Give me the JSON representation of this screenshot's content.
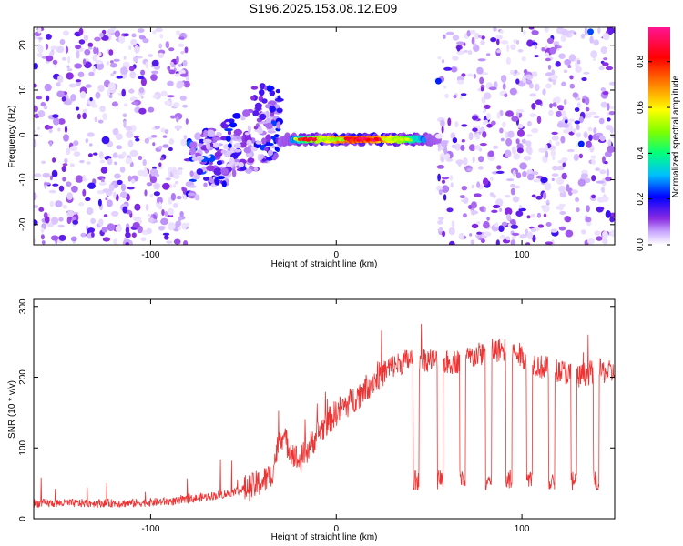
{
  "title": "S196.2025.153.08.12.E09",
  "chart_data": [
    {
      "type": "heatmap",
      "xlabel": "Height of straight line (km)",
      "ylabel": "Frequency (Hz)",
      "xlim": [
        -163,
        150
      ],
      "ylim": [
        -24.5,
        24
      ],
      "xticks": [
        -100,
        0,
        100
      ],
      "yticks": [
        -20,
        -10,
        0,
        10,
        20
      ],
      "colorbar": {
        "label": "Normalized spectral amplitude",
        "range": [
          0,
          0.95
        ],
        "ticks": [
          "0.0",
          "0.2",
          "0.4",
          "0.6",
          "0.8"
        ],
        "colors": [
          "#ffffff",
          "#c9a8ff",
          "#8a2be2",
          "#0000ff",
          "#00bfff",
          "#00ff7f",
          "#7fff00",
          "#ffff00",
          "#ff7f00",
          "#ff0000",
          "#ff1493"
        ]
      },
      "features": [
        {
          "name": "noise region left",
          "x_range": [
            -163,
            -80
          ],
          "freq_range": [
            -24.5,
            24
          ],
          "amplitude": 0.2
        },
        {
          "name": "dispersed arrival",
          "x_range": [
            -80,
            -30
          ],
          "freq_range": [
            -16,
            12
          ],
          "amplitude": 0.3
        },
        {
          "name": "strong ridge",
          "x_range": [
            -30,
            55
          ],
          "freq": -1,
          "peak_amplitude": 0.95
        },
        {
          "name": "noise region right",
          "x_range": [
            55,
            150
          ],
          "freq_range": [
            -24.5,
            24
          ],
          "amplitude": 0.2
        }
      ]
    },
    {
      "type": "line",
      "xlabel": "Height of straight line (km)",
      "ylabel": "SNR (10 * v/v)",
      "xlim": [
        -163,
        150
      ],
      "ylim": [
        0,
        310
      ],
      "xticks": [
        -100,
        0,
        100
      ],
      "yticks": [
        0,
        100,
        200,
        300
      ],
      "color": "#ee3333",
      "series_profile": {
        "x": [
          -163,
          -110,
          -85,
          -60,
          -45,
          -35,
          -30,
          -20,
          -10,
          0,
          10,
          20,
          30,
          40,
          50,
          60,
          70,
          80,
          90,
          100,
          110,
          120,
          130,
          140,
          150
        ],
        "y": [
          22,
          22,
          25,
          35,
          45,
          60,
          120,
          80,
          120,
          150,
          170,
          195,
          215,
          225,
          225,
          220,
          225,
          235,
          240,
          230,
          215,
          210,
          200,
          210,
          205
        ]
      },
      "dips_x": [
        43,
        56,
        68,
        82,
        93,
        104,
        116,
        128,
        140
      ],
      "dip_level": 55
    }
  ]
}
